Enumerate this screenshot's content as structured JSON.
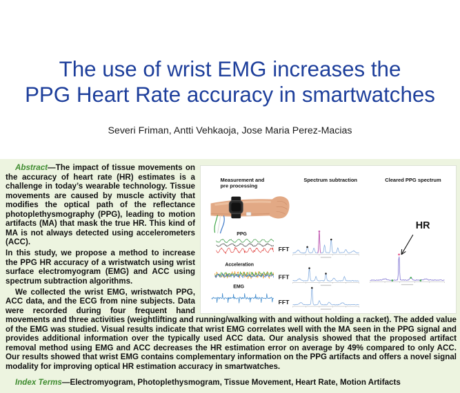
{
  "title": {
    "line1": "The use of wrist EMG increases the",
    "line2": "PPG Heart Rate accuracy in smartwatches"
  },
  "authors": "Severi Friman, Antti Vehkaoja, Jose Maria Perez-Macias",
  "abstract": {
    "label": "Abstract",
    "paragraphs": [
      "—The impact of tissue movements on the accuracy of heart rate (HR) estimates is a challenge in today’s wearable technology. Tissue movements are caused by muscle activity that modifies the optical path of the reflectance photoplethysmography (PPG), leading to motion artifacts (MA) that mask the true HR. This kind of MA is not always detected using accelerometers (ACC).",
      "In this study, we propose a method to increase the PPG HR accuracy of a wristwatch using wrist surface electromyogram (EMG) and ACC using spectrum subtraction algorithms.",
      "We collected the wrist EMG, wristwatch PPG, ACC data, and the ECG from nine subjects. Data were recorded during four frequent hand movements and three activities (weightlifting and running/walking with and without holding a racket). The added value of the EMG was studied. Visual results indicate that wrist EMG correlates well with the MA seen in the PPG signal and provides additional information over the typically used ACC data. Our analysis showed that the proposed artifact removal method using EMG and ACC decreases the HR estimation error on average by 49% compared to only ACC. Our results showed that wrist EMG contains complementary information on the PPG artifacts and offers a novel signal modality for improving optical HR estimation accuracy in smartwatches."
    ]
  },
  "index_terms": {
    "label": "Index Terms",
    "text": "—Electromyogram, Photoplethysmogram, Tissue Movement, Heart Rate, Motion Artifacts"
  },
  "figure": {
    "headers": {
      "measurement_line1": "Measurement and",
      "measurement_line2": "pre processing",
      "spectrum_subtraction": "Spectrum subtraction",
      "cleared_spectrum": "Cleared PPG spectrum"
    },
    "signals": {
      "ppg": "PPG",
      "acceleration": "Acceleration",
      "emg": "EMG"
    },
    "fft": "FFT",
    "hr": "HR",
    "photo_icon": "wrist-with-smartwatch-icon"
  },
  "colors": {
    "title": "#1e3f9b",
    "label": "#3e8b2f",
    "panel_background": "#edf4e0",
    "body_text": "#111111",
    "ppg_signal_red": "#e0433f",
    "ppg_signal_green": "#3d9a46",
    "acc_signal_orange": "#ef9a2a",
    "emg_signal_blue": "#2f80c8",
    "spectrum_blue": "#86aee0",
    "hr_peak": "#7b6fd0"
  }
}
